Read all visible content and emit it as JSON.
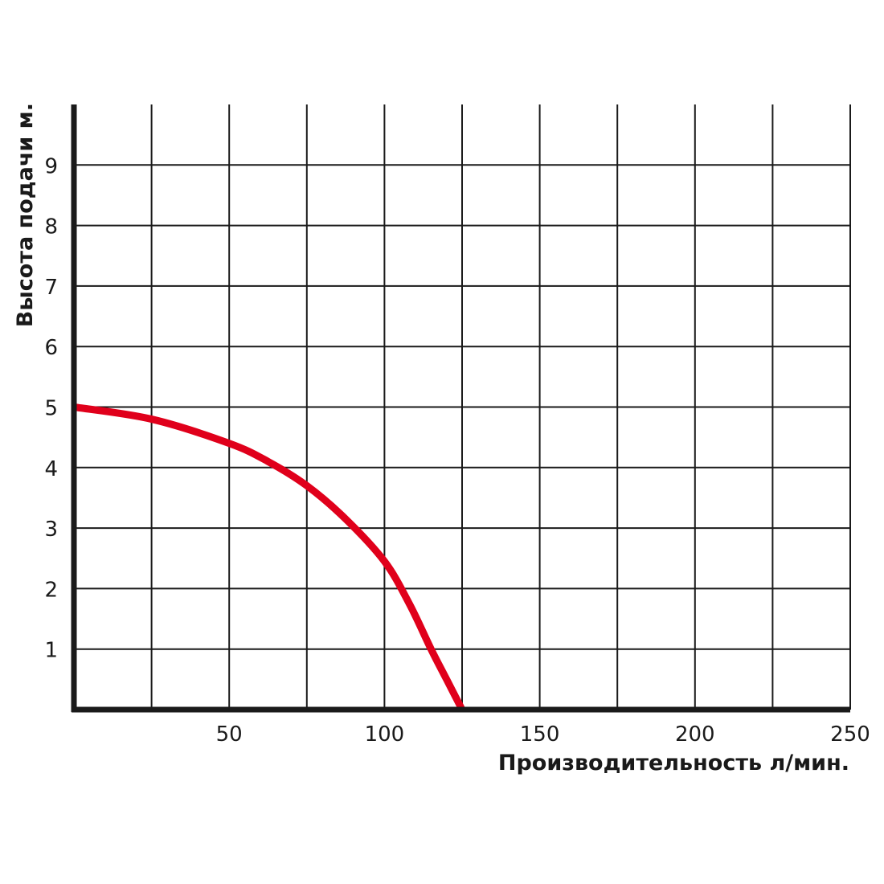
{
  "chart_data": {
    "type": "line",
    "title": "",
    "xlabel": "Производительность л/мин.",
    "ylabel": "Высота подачи м.",
    "xlim": [
      0,
      250
    ],
    "ylim": [
      0,
      10
    ],
    "x_ticks": [
      50,
      100,
      150,
      200,
      250
    ],
    "x_tick_labels": [
      "50",
      "100",
      "150",
      "200",
      "250"
    ],
    "y_ticks": [
      1,
      2,
      3,
      4,
      5,
      6,
      7,
      8,
      9
    ],
    "y_tick_labels": [
      "1",
      "2",
      "3",
      "4",
      "5",
      "6",
      "7",
      "8",
      "9"
    ],
    "x_grid_step": 25,
    "y_grid_step": 1,
    "grid": true,
    "legend": "none",
    "series": [
      {
        "color": "#e0001b",
        "x": [
          0,
          25,
          50,
          62.5,
          75,
          87.5,
          100,
          108,
          115,
          120,
          125
        ],
        "y": [
          5,
          4.8,
          4.4,
          4.1,
          3.7,
          3.15,
          2.45,
          1.75,
          1.0,
          0.5,
          0
        ]
      }
    ],
    "colors": {
      "axis": "#1a1a1a",
      "grid": "#1a1a1a",
      "curve": "#e0001b"
    }
  }
}
